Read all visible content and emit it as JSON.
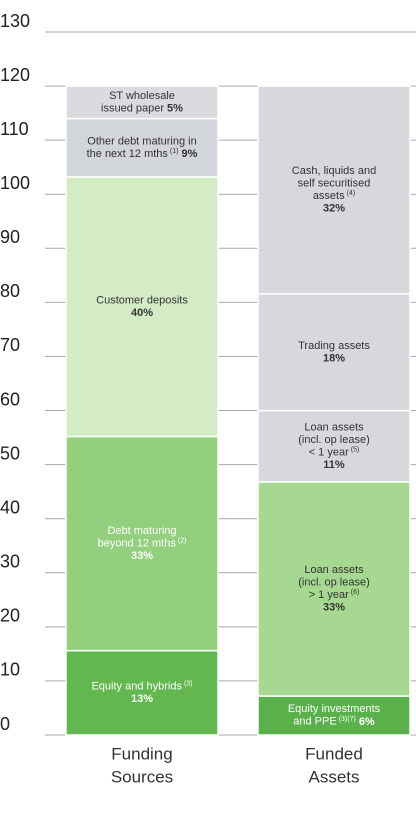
{
  "chart_data": {
    "type": "stacked_bar",
    "ylim": [
      0,
      130
    ],
    "yticks": [
      0,
      10,
      20,
      30,
      40,
      50,
      60,
      70,
      80,
      90,
      100,
      110,
      120,
      130
    ],
    "grid": true,
    "bars": [
      {
        "category": [
          "Funding",
          "Sources"
        ],
        "segments": [
          {
            "lines": [
              "Equity and hybrids"
            ],
            "sup": "(3)",
            "share": "13%",
            "share_inline": false,
            "value": 15.6,
            "color": "#62b74f"
          },
          {
            "lines": [
              "Debt maturing",
              "beyond 12 mths"
            ],
            "sup": "(2)",
            "share": "33%",
            "share_inline": false,
            "value": 39.6,
            "color": "#93cf7d"
          },
          {
            "lines": [
              "Customer deposits"
            ],
            "share": "40%",
            "share_inline": false,
            "value": 48,
            "color": "#d4ecc5"
          },
          {
            "lines": [
              "Other debt maturing in",
              "the next 12 mths"
            ],
            "sup": "(1)",
            "share": "9%",
            "share_inline": true,
            "value": 10.8,
            "color": "#d2d5da"
          },
          {
            "lines": [
              "ST wholesale",
              "issued paper"
            ],
            "share": "5%",
            "share_inline": true,
            "value": 6,
            "color": "#d9dbdf"
          }
        ]
      },
      {
        "category": [
          "Funded",
          "Assets"
        ],
        "segments": [
          {
            "lines": [
              "Equity investments",
              "and PPE"
            ],
            "sup": "(3)(7)",
            "share": "6%",
            "share_inline": true,
            "value": 7.2,
            "color": "#5ab04a"
          },
          {
            "lines": [
              "Loan assets",
              "(incl. op lease)",
              "> 1 year"
            ],
            "sup": "(6)",
            "share": "33%",
            "share_inline": false,
            "value": 39.6,
            "color": "#a7d891"
          },
          {
            "lines": [
              "Loan assets",
              "(incl. op lease)",
              "< 1 year"
            ],
            "sup": "(5)",
            "share": "11%",
            "share_inline": false,
            "value": 13.2,
            "color": "#d6d8dc"
          },
          {
            "lines": [
              "Trading assets"
            ],
            "share": "18%",
            "share_inline": false,
            "value": 21.6,
            "color": "#d6d8dc"
          },
          {
            "lines": [
              "Cash, liquids and",
              "self securitised",
              "assets"
            ],
            "sup": "(4)",
            "share": "32%",
            "share_inline": false,
            "value": 38.4,
            "color": "#d6d8dc"
          }
        ]
      }
    ]
  }
}
